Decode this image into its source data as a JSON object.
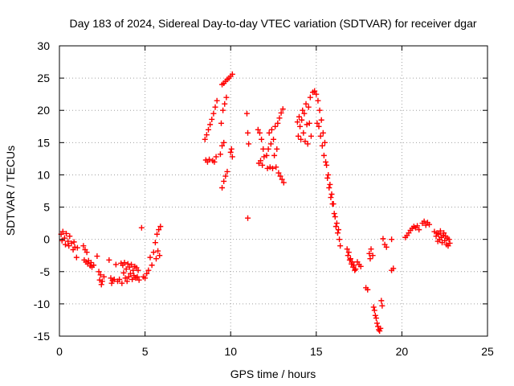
{
  "chart_data": {
    "type": "scatter",
    "title": "Day 183 of 2024, Sidereal Day-to-day VTEC variation (SDTVAR) for receiver dgar",
    "xlabel": "GPS time / hours",
    "ylabel": "SDTVAR / TECUs",
    "xlim": [
      0,
      25
    ],
    "ylim": [
      -15,
      30
    ],
    "xticks": [
      0,
      5,
      10,
      15,
      20,
      25
    ],
    "yticks": [
      -15,
      -10,
      -5,
      0,
      5,
      10,
      15,
      20,
      25,
      30
    ],
    "grid": true,
    "marker": "+",
    "marker_color": "#ff0000",
    "series": [
      {
        "name": "SDTVAR",
        "points": [
          [
            0.1,
            0.8
          ],
          [
            0.15,
            -0.2
          ],
          [
            0.2,
            1.2
          ],
          [
            0.3,
            0.2
          ],
          [
            0.35,
            -0.8
          ],
          [
            0.4,
            0.9
          ],
          [
            0.5,
            -0.3
          ],
          [
            0.55,
            -1.0
          ],
          [
            0.6,
            0.5
          ],
          [
            0.7,
            -0.6
          ],
          [
            0.8,
            -1.6
          ],
          [
            0.85,
            -0.4
          ],
          [
            0.9,
            -1.2
          ],
          [
            1.0,
            -2.8
          ],
          [
            1.05,
            -1.3
          ],
          [
            1.4,
            -1.0
          ],
          [
            1.45,
            -3.2
          ],
          [
            1.5,
            -1.6
          ],
          [
            1.55,
            -3.5
          ],
          [
            1.6,
            -2.0
          ],
          [
            1.65,
            -3.8
          ],
          [
            1.7,
            -3.3
          ],
          [
            1.8,
            -4.1
          ],
          [
            1.85,
            -3.6
          ],
          [
            1.9,
            -4.3
          ],
          [
            2.0,
            -4.0
          ],
          [
            2.2,
            -2.6
          ],
          [
            2.3,
            -5.0
          ],
          [
            2.35,
            -6.3
          ],
          [
            2.4,
            -5.5
          ],
          [
            2.45,
            -7.0
          ],
          [
            2.5,
            -6.5
          ],
          [
            2.6,
            -5.8
          ],
          [
            2.9,
            -3.2
          ],
          [
            3.0,
            -6.0
          ],
          [
            3.05,
            -6.8
          ],
          [
            3.1,
            -6.4
          ],
          [
            3.2,
            -6.2
          ],
          [
            3.3,
            -3.9
          ],
          [
            3.4,
            -6.5
          ],
          [
            3.5,
            -6.2
          ],
          [
            3.6,
            -3.7
          ],
          [
            3.65,
            -6.8
          ],
          [
            3.7,
            -4.0
          ],
          [
            3.75,
            -5.2
          ],
          [
            3.8,
            -3.6
          ],
          [
            3.85,
            -6.0
          ],
          [
            3.9,
            -4.6
          ],
          [
            3.95,
            -6.5
          ],
          [
            4.0,
            -3.8
          ],
          [
            4.05,
            -5.8
          ],
          [
            4.1,
            -4.3
          ],
          [
            4.15,
            -5.3
          ],
          [
            4.2,
            -3.9
          ],
          [
            4.25,
            -6.2
          ],
          [
            4.3,
            -4.8
          ],
          [
            4.35,
            -5.6
          ],
          [
            4.4,
            -4.2
          ],
          [
            4.45,
            -6.0
          ],
          [
            4.5,
            -4.4
          ],
          [
            4.55,
            -5.8
          ],
          [
            4.6,
            -4.8
          ],
          [
            4.65,
            -6.3
          ],
          [
            4.8,
            1.8
          ],
          [
            4.9,
            -5.8
          ],
          [
            5.0,
            -6.0
          ],
          [
            5.1,
            -5.3
          ],
          [
            5.2,
            -4.8
          ],
          [
            5.3,
            -2.8
          ],
          [
            5.4,
            -4.0
          ],
          [
            5.5,
            -2.0
          ],
          [
            5.6,
            -0.5
          ],
          [
            5.65,
            -3.0
          ],
          [
            5.7,
            0.8
          ],
          [
            5.75,
            -1.8
          ],
          [
            5.8,
            1.5
          ],
          [
            5.85,
            -2.5
          ],
          [
            5.9,
            2.0
          ],
          [
            8.5,
            15.5
          ],
          [
            8.55,
            12.3
          ],
          [
            8.6,
            16.2
          ],
          [
            8.65,
            12.0
          ],
          [
            8.7,
            17.0
          ],
          [
            8.75,
            12.4
          ],
          [
            8.8,
            17.8
          ],
          [
            8.9,
            18.6
          ],
          [
            8.95,
            12.2
          ],
          [
            9.0,
            19.5
          ],
          [
            9.05,
            12.0
          ],
          [
            9.1,
            20.5
          ],
          [
            9.15,
            12.8
          ],
          [
            9.2,
            21.5
          ],
          [
            9.4,
            13.2
          ],
          [
            9.45,
            18.0
          ],
          [
            9.5,
            14.5
          ],
          [
            9.5,
            8.0
          ],
          [
            9.55,
            20.0
          ],
          [
            9.6,
            15.0
          ],
          [
            9.6,
            9.0
          ],
          [
            9.65,
            21.0
          ],
          [
            9.7,
            9.8
          ],
          [
            9.75,
            22.0
          ],
          [
            9.8,
            10.5
          ],
          [
            9.5,
            24.0
          ],
          [
            9.6,
            24.2
          ],
          [
            9.7,
            24.5
          ],
          [
            9.8,
            24.8
          ],
          [
            9.9,
            25.0
          ],
          [
            10.0,
            25.3
          ],
          [
            10.1,
            25.6
          ],
          [
            10.05,
            14.0
          ],
          [
            10.1,
            12.8
          ],
          [
            10.0,
            13.5
          ],
          [
            10.95,
            19.5
          ],
          [
            11.0,
            3.3
          ],
          [
            11.0,
            16.5
          ],
          [
            11.05,
            14.8
          ],
          [
            11.6,
            17.0
          ],
          [
            11.65,
            11.8
          ],
          [
            11.7,
            16.5
          ],
          [
            11.75,
            12.2
          ],
          [
            11.8,
            15.5
          ],
          [
            11.85,
            11.5
          ],
          [
            11.9,
            14.0
          ],
          [
            11.95,
            12.8
          ],
          [
            12.1,
            13.0
          ],
          [
            12.15,
            11.0
          ],
          [
            12.2,
            14.0
          ],
          [
            12.25,
            16.5
          ],
          [
            12.3,
            11.2
          ],
          [
            12.35,
            14.8
          ],
          [
            12.4,
            17.0
          ],
          [
            12.45,
            11.0
          ],
          [
            12.5,
            15.5
          ],
          [
            12.55,
            13.0
          ],
          [
            12.6,
            17.5
          ],
          [
            12.65,
            11.2
          ],
          [
            12.7,
            14.0
          ],
          [
            12.75,
            18.0
          ],
          [
            12.8,
            10.3
          ],
          [
            12.85,
            18.8
          ],
          [
            12.9,
            9.8
          ],
          [
            12.95,
            19.6
          ],
          [
            13.0,
            9.3
          ],
          [
            13.05,
            20.2
          ],
          [
            13.1,
            8.8
          ],
          [
            13.9,
            18.2
          ],
          [
            13.95,
            16.0
          ],
          [
            14.0,
            19.0
          ],
          [
            14.05,
            17.5
          ],
          [
            14.1,
            15.5
          ],
          [
            14.15,
            18.5
          ],
          [
            14.2,
            20.0
          ],
          [
            14.25,
            16.5
          ],
          [
            14.3,
            19.5
          ],
          [
            14.35,
            15.2
          ],
          [
            14.4,
            21.0
          ],
          [
            14.45,
            17.8
          ],
          [
            14.5,
            14.8
          ],
          [
            14.55,
            20.5
          ],
          [
            14.6,
            18.0
          ],
          [
            14.65,
            22.0
          ],
          [
            14.7,
            16.0
          ],
          [
            14.8,
            22.8
          ],
          [
            14.9,
            23.0
          ],
          [
            15.0,
            22.5
          ],
          [
            15.05,
            18.0
          ],
          [
            15.1,
            21.5
          ],
          [
            15.15,
            17.5
          ],
          [
            15.2,
            20.0
          ],
          [
            15.25,
            16.0
          ],
          [
            15.3,
            18.5
          ],
          [
            15.35,
            14.5
          ],
          [
            15.4,
            16.5
          ],
          [
            15.45,
            13.0
          ],
          [
            15.5,
            15.0
          ],
          [
            15.55,
            12.0
          ],
          [
            15.6,
            11.5
          ],
          [
            15.65,
            9.5
          ],
          [
            15.7,
            10.0
          ],
          [
            15.75,
            8.0
          ],
          [
            15.8,
            8.5
          ],
          [
            15.85,
            6.5
          ],
          [
            15.9,
            7.0
          ],
          [
            15.95,
            5.5
          ],
          [
            16.0,
            5.5
          ],
          [
            16.05,
            4.0
          ],
          [
            16.1,
            3.5
          ],
          [
            16.15,
            2.0
          ],
          [
            16.2,
            2.5
          ],
          [
            16.25,
            1.0
          ],
          [
            16.3,
            1.5
          ],
          [
            16.35,
            0.0
          ],
          [
            16.4,
            -1.0
          ],
          [
            16.8,
            -1.5
          ],
          [
            16.85,
            -2.5
          ],
          [
            16.9,
            -2.0
          ],
          [
            16.95,
            -3.2
          ],
          [
            17.0,
            -3.0
          ],
          [
            17.05,
            -3.8
          ],
          [
            17.1,
            -3.5
          ],
          [
            17.15,
            -4.3
          ],
          [
            17.2,
            -4.0
          ],
          [
            17.25,
            -4.8
          ],
          [
            17.3,
            -4.6
          ],
          [
            17.4,
            -3.5
          ],
          [
            17.5,
            -3.9
          ],
          [
            17.6,
            -4.2
          ],
          [
            17.9,
            -7.5
          ],
          [
            18.0,
            -7.8
          ],
          [
            18.1,
            -2.2
          ],
          [
            18.15,
            -3.0
          ],
          [
            18.2,
            -1.5
          ],
          [
            18.3,
            -2.5
          ],
          [
            18.35,
            -10.5
          ],
          [
            18.4,
            -11.0
          ],
          [
            18.45,
            -11.8
          ],
          [
            18.5,
            -12.2
          ],
          [
            18.55,
            -13.0
          ],
          [
            18.6,
            -13.5
          ],
          [
            18.65,
            -14.0
          ],
          [
            18.7,
            -14.2
          ],
          [
            18.75,
            -13.8
          ],
          [
            18.8,
            -9.5
          ],
          [
            18.85,
            -10.3
          ],
          [
            18.9,
            0.1
          ],
          [
            19.0,
            -0.8
          ],
          [
            19.1,
            -1.2
          ],
          [
            19.4,
            -4.8
          ],
          [
            19.5,
            -4.5
          ],
          [
            19.4,
            0.0
          ],
          [
            20.2,
            0.3
          ],
          [
            20.3,
            0.6
          ],
          [
            20.4,
            1.0
          ],
          [
            20.5,
            1.4
          ],
          [
            20.6,
            1.7
          ],
          [
            20.7,
            2.0
          ],
          [
            20.8,
            1.8
          ],
          [
            20.9,
            2.1
          ],
          [
            21.0,
            1.5
          ],
          [
            21.2,
            2.5
          ],
          [
            21.3,
            2.8
          ],
          [
            21.4,
            2.2
          ],
          [
            21.5,
            2.6
          ],
          [
            21.6,
            2.3
          ],
          [
            21.9,
            1.2
          ],
          [
            22.0,
            0.5
          ],
          [
            22.05,
            1.0
          ],
          [
            22.1,
            -0.3
          ],
          [
            22.15,
            0.8
          ],
          [
            22.2,
            0.0
          ],
          [
            22.25,
            1.3
          ],
          [
            22.3,
            0.3
          ],
          [
            22.35,
            -0.5
          ],
          [
            22.4,
            0.6
          ],
          [
            22.45,
            1.0
          ],
          [
            22.5,
            -0.2
          ],
          [
            22.55,
            0.5
          ],
          [
            22.6,
            -0.8
          ],
          [
            22.65,
            0.2
          ],
          [
            22.7,
            -1.0
          ],
          [
            22.75,
            0.0
          ],
          [
            22.8,
            -0.6
          ]
        ]
      }
    ]
  }
}
